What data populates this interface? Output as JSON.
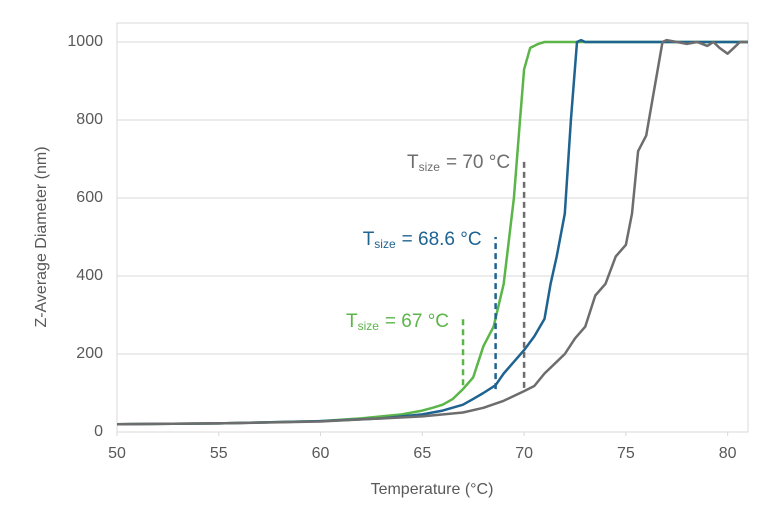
{
  "chart_data": {
    "type": "line",
    "xlabel": "Temperature (°C)",
    "ylabel": "Z-Average Diameter (nm)",
    "xlim": [
      50,
      81
    ],
    "ylim": [
      0,
      1000
    ],
    "xticks": [
      50,
      55,
      60,
      65,
      70,
      75,
      80
    ],
    "yticks": [
      0,
      200,
      400,
      600,
      800,
      1000
    ],
    "grid": true,
    "series": [
      {
        "color": "#5bb548",
        "x": [
          50,
          55,
          60,
          62,
          63,
          64,
          65,
          65.5,
          66,
          66.5,
          67,
          67.5,
          68,
          68.5,
          69,
          69.5,
          69.8,
          70,
          70.3,
          70.7,
          71,
          81
        ],
        "values": [
          20,
          22,
          28,
          35,
          40,
          45,
          55,
          62,
          70,
          85,
          110,
          140,
          220,
          270,
          380,
          600,
          800,
          930,
          985,
          995,
          1000,
          1000
        ]
      },
      {
        "color": "#1f6391",
        "x": [
          50,
          55,
          60,
          63,
          65,
          66,
          67,
          67.5,
          68,
          68.6,
          69,
          69.5,
          70,
          70.5,
          71,
          71.3,
          71.6,
          72,
          72.3,
          72.6,
          72.8,
          73,
          81
        ],
        "values": [
          20,
          22,
          28,
          35,
          45,
          55,
          70,
          85,
          100,
          120,
          150,
          180,
          210,
          245,
          290,
          380,
          450,
          560,
          800,
          1000,
          1005,
          1000,
          1000
        ]
      },
      {
        "color": "#6d6d6d",
        "x": [
          50,
          55,
          60,
          65,
          67,
          68,
          69,
          70,
          70.5,
          71,
          71.5,
          72,
          72.5,
          73,
          73.5,
          74,
          74.5,
          75,
          75.3,
          75.6,
          76,
          76.3,
          76.8,
          77,
          77.5,
          78,
          78.5,
          79,
          79.3,
          79.6,
          80,
          80.3,
          80.6,
          81
        ],
        "values": [
          20,
          22,
          27,
          40,
          50,
          62,
          80,
          105,
          118,
          150,
          175,
          200,
          240,
          270,
          350,
          380,
          450,
          480,
          560,
          720,
          760,
          850,
          1000,
          1005,
          1000,
          995,
          1000,
          990,
          1000,
          985,
          970,
          985,
          1000,
          1000
        ]
      }
    ],
    "annotations": [
      {
        "text": "T",
        "sub": "size",
        "rest": "= 70 °C",
        "color": "#6d6d6d",
        "x": 70,
        "y_from": 113,
        "y_to": 697
      },
      {
        "text": "T",
        "sub": "size",
        "rest": "= 68.6 °C",
        "color": "#1f6391",
        "x": 68.6,
        "y_from": 110,
        "y_to": 500
      },
      {
        "text": "T",
        "sub": "size",
        "rest": "= 67 °C",
        "color": "#5bb548",
        "x": 67,
        "y_from": 120,
        "y_to": 290
      }
    ]
  }
}
